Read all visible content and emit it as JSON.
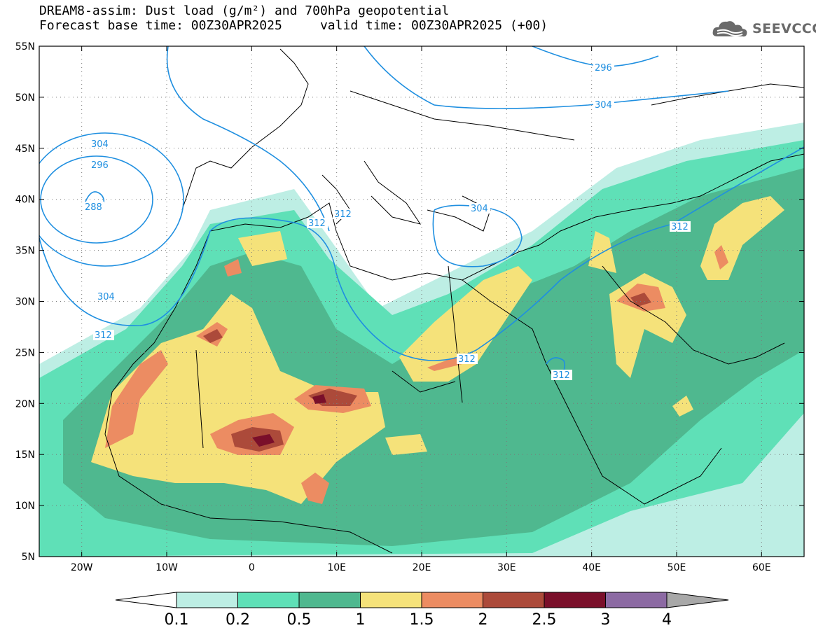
{
  "header": {
    "title_line1": "DREAM8-assim: Dust load (g/m²) and 700hPa geopotential",
    "title_line2": "Forecast base time: 00Z30APR2025     valid time: 00Z30APR2025 (+00)"
  },
  "logo": {
    "text": "SEEVCCC",
    "icon": "cloud-logo-icon"
  },
  "map": {
    "lat_labels": [
      "55N",
      "50N",
      "45N",
      "40N",
      "35N",
      "30N",
      "25N",
      "20N",
      "15N",
      "10N",
      "5N"
    ],
    "lon_labels": [
      "20W",
      "10W",
      "0",
      "10E",
      "20E",
      "30E",
      "40E",
      "50E",
      "60E"
    ],
    "lat_range": [
      5,
      55
    ],
    "lon_range": [
      -25,
      65
    ],
    "contour_color": "#1f8fe0",
    "contour_labels": [
      "296",
      "304",
      "304",
      "296",
      "288",
      "312",
      "312",
      "304",
      "312",
      "312",
      "312",
      "312",
      "304"
    ]
  },
  "colorbar": {
    "labels": [
      "0.1",
      "0.2",
      "0.5",
      "1",
      "1.5",
      "2",
      "2.5",
      "3",
      "4"
    ],
    "colors": [
      "#ffffff",
      "#bdeee4",
      "#5fe0b7",
      "#4fb88f",
      "#f5e27a",
      "#ec8c62",
      "#ac4a3a",
      "#7a0f2a",
      "#8c6aa3",
      "#a8a8a8"
    ]
  }
}
